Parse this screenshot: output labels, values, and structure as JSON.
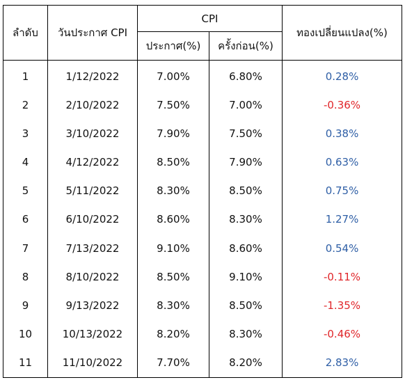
{
  "headers": {
    "rank": "ลำดับ",
    "announce_date": "วันประกาศ CPI",
    "cpi_group": "CPI",
    "cpi_announced": "ประกาศ(%)",
    "cpi_previous": "ครั้งก่อน(%)",
    "gold_change": "ทองเปลี่ยนแปลง(%)"
  },
  "rows": [
    {
      "rank": "1",
      "date": "1/12/2022",
      "announced": "7.00%",
      "previous": "6.80%",
      "change": "0.28%",
      "sign": "pos"
    },
    {
      "rank": "2",
      "date": "2/10/2022",
      "announced": "7.50%",
      "previous": "7.00%",
      "change": "-0.36%",
      "sign": "neg"
    },
    {
      "rank": "3",
      "date": "3/10/2022",
      "announced": "7.90%",
      "previous": "7.50%",
      "change": "0.38%",
      "sign": "pos"
    },
    {
      "rank": "4",
      "date": "4/12/2022",
      "announced": "8.50%",
      "previous": "7.90%",
      "change": "0.63%",
      "sign": "pos"
    },
    {
      "rank": "5",
      "date": "5/11/2022",
      "announced": "8.30%",
      "previous": "8.50%",
      "change": "0.75%",
      "sign": "pos"
    },
    {
      "rank": "6",
      "date": "6/10/2022",
      "announced": "8.60%",
      "previous": "8.30%",
      "change": "1.27%",
      "sign": "pos"
    },
    {
      "rank": "7",
      "date": "7/13/2022",
      "announced": "9.10%",
      "previous": "8.60%",
      "change": "0.54%",
      "sign": "pos"
    },
    {
      "rank": "8",
      "date": "8/10/2022",
      "announced": "8.50%",
      "previous": "9.10%",
      "change": "-0.11%",
      "sign": "neg"
    },
    {
      "rank": "9",
      "date": "9/13/2022",
      "announced": "8.30%",
      "previous": "8.50%",
      "change": "-1.35%",
      "sign": "neg"
    },
    {
      "rank": "10",
      "date": "10/13/2022",
      "announced": "8.20%",
      "previous": "8.30%",
      "change": "-0.46%",
      "sign": "neg"
    },
    {
      "rank": "11",
      "date": "11/10/2022",
      "announced": "7.70%",
      "previous": "8.20%",
      "change": "2.83%",
      "sign": "pos"
    }
  ],
  "colors": {
    "positive": "#2f5fa6",
    "negative": "#e0262a"
  }
}
